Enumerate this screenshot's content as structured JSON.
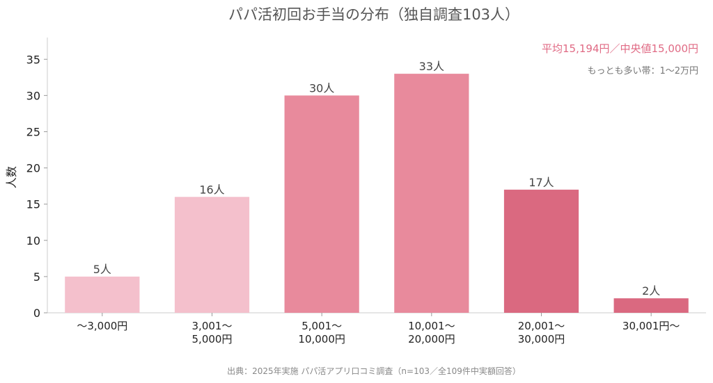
{
  "chart_data": {
    "type": "bar",
    "title": "パパ活初回お手当の分布（独自調査103人）",
    "ylabel": "人数",
    "xlabel": "",
    "ylim": [
      0,
      38
    ],
    "yticks": [
      0,
      5,
      10,
      15,
      20,
      25,
      30,
      35
    ],
    "grid": false,
    "categories": [
      [
        "〜3,000円"
      ],
      [
        "3,001〜",
        "5,000円"
      ],
      [
        "5,001〜",
        "10,000円"
      ],
      [
        "10,001〜",
        "20,000円"
      ],
      [
        "20,001〜",
        "30,000円"
      ],
      [
        "30,001円〜"
      ]
    ],
    "values": [
      5,
      16,
      30,
      33,
      17,
      2
    ],
    "data_labels": [
      "5人",
      "16人",
      "30人",
      "33人",
      "17人",
      "2人"
    ],
    "bar_colors": [
      "#f4c0cc",
      "#f4c0cc",
      "#e88a9c",
      "#e88a9c",
      "#da6980",
      "#da6980"
    ],
    "annotations": {
      "main": "平均15,194円／中央値15,000円",
      "sub": "もっとも多い帯：1〜2万円"
    },
    "source": "出典：2025年実施 パパ活アプリ口コミ調査（n=103／全109件中実額回答）"
  }
}
